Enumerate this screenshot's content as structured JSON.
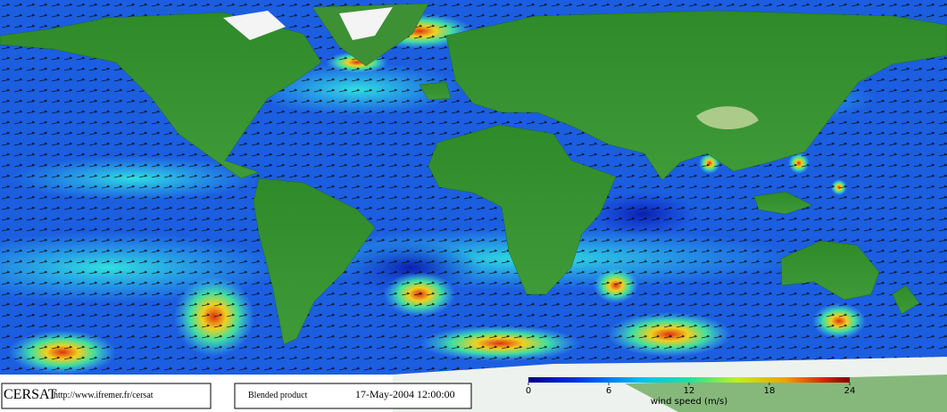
{
  "credits": {
    "logo": "CERSAT",
    "url": "http://www.ifremer.fr/cersat"
  },
  "product": "Blended product",
  "timestamp": "17-May-2004 12:00:00",
  "colorbar": {
    "label": "wind speed (m/s)",
    "lim": [
      0,
      24
    ],
    "ticks": [
      0,
      6,
      12,
      18,
      24
    ]
  }
}
